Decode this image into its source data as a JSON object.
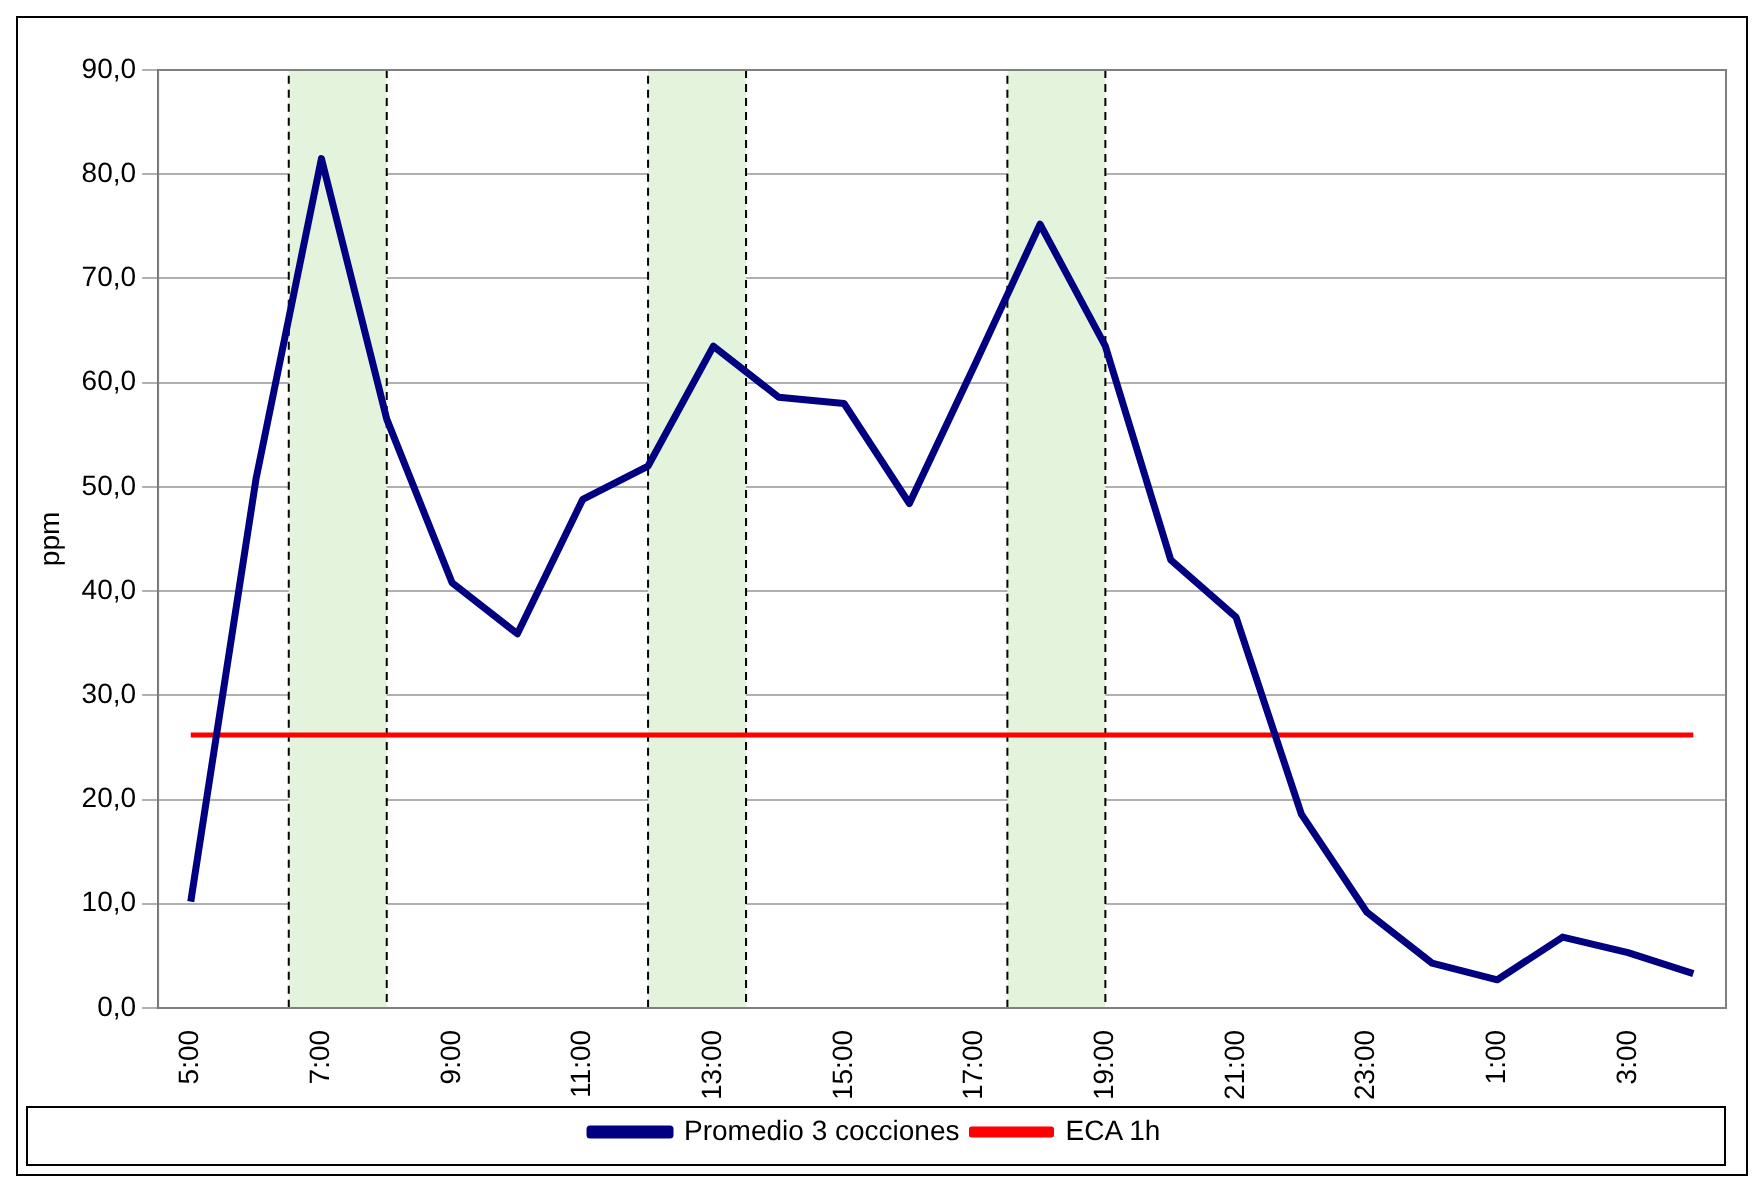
{
  "chart_data": {
    "type": "line",
    "ylabel": "ppm",
    "xlim": [
      "2000-01-01T04:30",
      "2000-01-02T04:30"
    ],
    "xticks": [
      {
        "value": "2000-01-01T05:00",
        "label": "5:00"
      },
      {
        "value": "2000-01-01T07:00",
        "label": "7:00"
      },
      {
        "value": "2000-01-01T09:00",
        "label": "9:00"
      },
      {
        "value": "2000-01-01T11:00",
        "label": "11:00"
      },
      {
        "value": "2000-01-01T13:00",
        "label": "13:00"
      },
      {
        "value": "2000-01-01T15:00",
        "label": "15:00"
      },
      {
        "value": "2000-01-01T17:00",
        "label": "17:00"
      },
      {
        "value": "2000-01-01T19:00",
        "label": "19:00"
      },
      {
        "value": "2000-01-01T21:00",
        "label": "21:00"
      },
      {
        "value": "2000-01-01T23:00",
        "label": "23:00"
      },
      {
        "value": "2000-01-02T01:00",
        "label": "1:00"
      },
      {
        "value": "2000-01-02T03:00",
        "label": "3:00"
      }
    ],
    "ylim": [
      0,
      90
    ],
    "yticks": [
      {
        "value": 0,
        "label": "0,0"
      },
      {
        "value": 10,
        "label": "10,0"
      },
      {
        "value": 20,
        "label": "20,0"
      },
      {
        "value": 30,
        "label": "30,0"
      },
      {
        "value": 40,
        "label": "40,0"
      },
      {
        "value": 50,
        "label": "50,0"
      },
      {
        "value": 60,
        "label": "60,0"
      },
      {
        "value": 70,
        "label": "70,0"
      },
      {
        "value": 80,
        "label": "80,0"
      },
      {
        "value": 90,
        "label": "90,0"
      }
    ],
    "series": [
      {
        "name": "Promedio 3 cocciones",
        "color": "#000080",
        "x": [
          "2000-01-01T05:00",
          "2000-01-01T06:00",
          "2000-01-01T07:00",
          "2000-01-01T08:00",
          "2000-01-01T09:00",
          "2000-01-01T10:00",
          "2000-01-01T11:00",
          "2000-01-01T12:00",
          "2000-01-01T13:00",
          "2000-01-01T14:00",
          "2000-01-01T15:00",
          "2000-01-01T16:00",
          "2000-01-01T17:00",
          "2000-01-01T18:00",
          "2000-01-01T19:00",
          "2000-01-01T20:00",
          "2000-01-01T21:00",
          "2000-01-01T22:00",
          "2000-01-01T23:00",
          "2000-01-02T00:00",
          "2000-01-02T01:00",
          "2000-01-02T02:00",
          "2000-01-02T03:00",
          "2000-01-02T04:00"
        ],
        "values": [
          10.2,
          50.8,
          81.5,
          56.5,
          40.8,
          35.9,
          48.8,
          52.0,
          63.5,
          58.6,
          58.0,
          48.4,
          61.7,
          75.2,
          63.5,
          43.0,
          37.5,
          18.6,
          9.2,
          4.3,
          2.7,
          6.8,
          5.3,
          3.3
        ]
      },
      {
        "name": "ECA 1h",
        "color": "#ff0000",
        "x": [
          "2000-01-01T05:00",
          "2000-01-02T04:00"
        ],
        "values": [
          26.2,
          26.2
        ]
      }
    ],
    "bands": [
      {
        "axis": "x",
        "from": "2000-01-01T06:30",
        "to": "2000-01-01T08:00",
        "color": "#e3f3dc"
      },
      {
        "axis": "x",
        "from": "2000-01-01T12:00",
        "to": "2000-01-01T13:30",
        "color": "#e3f3dc"
      },
      {
        "axis": "x",
        "from": "2000-01-01T17:30",
        "to": "2000-01-01T19:00",
        "color": "#e3f3dc"
      }
    ],
    "grid": "y",
    "legend": "bottom",
    "marker": "none",
    "line_style": "solid"
  }
}
